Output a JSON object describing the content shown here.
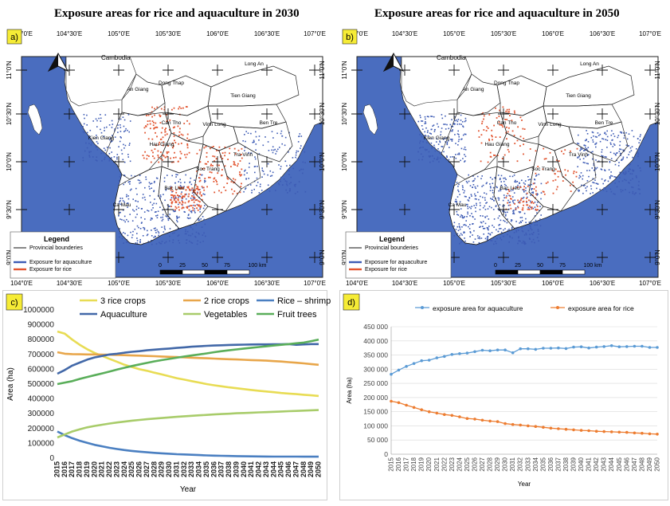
{
  "panel_a": {
    "title": "Exposure areas for rice and aquaculture in 2030",
    "panel_label": "a)",
    "lon_ticks": [
      "104°0'E",
      "104°30'E",
      "105°0'E",
      "105°30'E",
      "106°0'E",
      "106°30'E",
      "107°0'E"
    ],
    "lat_ticks": [
      "11°0'N",
      "10°30'N",
      "10°0'N",
      "9°30'N",
      "9°0'N"
    ],
    "country_label": "Cambodia",
    "provinces": [
      "Long An",
      "An Giang",
      "Dong Thap",
      "Tien Giang",
      "Can Tho",
      "Vinh Long",
      "Ben Tre",
      "Kien Giang",
      "Hau Giang",
      "Tra Vinh",
      "Soc Trang",
      "Bac Lieu",
      "Ca Mau"
    ],
    "legend": {
      "title": "Legend",
      "items": [
        "Provincial bounderies",
        "Exposure for aquaculture",
        "Exposure for rice"
      ]
    },
    "scale": {
      "ticks": [
        "0",
        "25",
        "50",
        "75",
        "100 km"
      ]
    }
  },
  "panel_b": {
    "title": "Exposure areas for rice and aquaculture in 2050",
    "panel_label": "b)",
    "lon_ticks": [
      "104°0'E",
      "104°30'E",
      "105°0'E",
      "105°30'E",
      "106°0'E",
      "106°30'E",
      "107°0'E"
    ],
    "lat_ticks": [
      "11°0'N",
      "10°30'N",
      "10°0'N",
      "9°30'N",
      "9°0'N"
    ],
    "country_label": "Cambodia",
    "provinces": [
      "Long An",
      "An Giang",
      "Dong Thap",
      "Tien Giang",
      "Can Tho",
      "Vinh Long",
      "Ben Tre",
      "Kien Giang",
      "Hau Giang",
      "Tra Vinh",
      "Soc Trang",
      "Bac Lieu",
      "Ca Mau"
    ],
    "legend": {
      "title": "Legend",
      "items": [
        "Provincial bounderies",
        "Exposure for aquaculture",
        "Exposure for rice"
      ]
    },
    "scale": {
      "ticks": [
        "0",
        "25",
        "50",
        "75",
        "100 km"
      ]
    }
  },
  "colors": {
    "sea": "#4a6dbf",
    "aquaculture": "#3d5bb5",
    "rice": "#e2542f",
    "land": "#ffffff",
    "cambodia": "#ffffff"
  },
  "chart_data": [
    {
      "type": "line",
      "panel_label": "c)",
      "title": "",
      "xlabel": "Year",
      "ylabel": "Area (ha)",
      "ylim": [
        0,
        1000000
      ],
      "yticks": [
        0,
        100000,
        200000,
        300000,
        400000,
        500000,
        600000,
        700000,
        800000,
        900000,
        1000000
      ],
      "x": [
        2015,
        2016,
        2017,
        2018,
        2019,
        2020,
        2021,
        2022,
        2023,
        2024,
        2025,
        2026,
        2027,
        2028,
        2029,
        2030,
        2031,
        2032,
        2033,
        2034,
        2035,
        2036,
        2037,
        2038,
        2039,
        2040,
        2041,
        2042,
        2043,
        2044,
        2045,
        2046,
        2047,
        2048,
        2049,
        2050
      ],
      "series": [
        {
          "name": "3 rice crops",
          "color": "#e8dc54",
          "values": [
            855000,
            840000,
            800000,
            765000,
            735000,
            710000,
            690000,
            670000,
            650000,
            630000,
            615000,
            600000,
            590000,
            577000,
            565000,
            552000,
            540000,
            530000,
            520000,
            510000,
            500000,
            492000,
            485000,
            478000,
            472000,
            466000,
            460000,
            455000,
            450000,
            445000,
            440000,
            436000,
            432000,
            428000,
            424000,
            420000
          ]
        },
        {
          "name": "2 rice crops",
          "color": "#e8a64a",
          "values": [
            715000,
            705000,
            702000,
            701000,
            700000,
            700000,
            699000,
            698000,
            697000,
            695000,
            693000,
            692000,
            690000,
            688000,
            686000,
            684000,
            682000,
            680000,
            678000,
            676000,
            674000,
            672000,
            670000,
            668000,
            666000,
            664000,
            662000,
            660000,
            658000,
            655000,
            652000,
            648000,
            644000,
            640000,
            635000,
            630000
          ]
        },
        {
          "name": "Rice – shrimp",
          "color": "#4a7fc1",
          "values": [
            180000,
            155000,
            135000,
            118000,
            103000,
            90000,
            80000,
            70000,
            62000,
            55000,
            49000,
            44000,
            40000,
            36000,
            33000,
            30000,
            27000,
            25000,
            23000,
            21000,
            19000,
            17000,
            16000,
            15000,
            14000,
            13000,
            12500,
            12000,
            11500,
            11000,
            11000,
            10500,
            10500,
            10000,
            10000,
            10000
          ]
        },
        {
          "name": "Aquaculture",
          "color": "#4268a8",
          "values": [
            570000,
            595000,
            625000,
            645000,
            665000,
            680000,
            690000,
            700000,
            705000,
            712000,
            718000,
            722000,
            728000,
            732000,
            736000,
            740000,
            744000,
            748000,
            752000,
            755000,
            758000,
            760000,
            762000,
            764000,
            765000,
            766000,
            767000,
            768000,
            768000,
            769000,
            769000,
            770000,
            765000,
            768000,
            770000,
            770000
          ]
        },
        {
          "name": "Vegetables",
          "color": "#a8cc6a",
          "values": [
            140000,
            160000,
            180000,
            195000,
            208000,
            218000,
            226000,
            234000,
            241000,
            247000,
            253000,
            258000,
            263000,
            267000,
            271000,
            275000,
            279000,
            283000,
            286000,
            289000,
            292000,
            295000,
            298000,
            300000,
            303000,
            305000,
            307000,
            309000,
            311000,
            313000,
            315000,
            317000,
            319000,
            321000,
            323000,
            325000
          ]
        },
        {
          "name": "Fruit trees",
          "color": "#5aae5a",
          "values": [
            500000,
            510000,
            520000,
            535000,
            548000,
            560000,
            572000,
            585000,
            598000,
            610000,
            622000,
            633000,
            643000,
            653000,
            662000,
            670000,
            678000,
            686000,
            693000,
            700000,
            707000,
            715000,
            722000,
            728000,
            734000,
            740000,
            745000,
            750000,
            755000,
            760000,
            765000,
            770000,
            775000,
            780000,
            790000,
            800000
          ]
        }
      ]
    },
    {
      "type": "line",
      "panel_label": "d)",
      "title": "",
      "xlabel": "Year",
      "ylabel": "Area (ha)",
      "ylim": [
        0,
        450000
      ],
      "yticks": [
        0,
        50000,
        100000,
        150000,
        200000,
        250000,
        300000,
        350000,
        400000,
        450000
      ],
      "x": [
        2015,
        2016,
        2017,
        2018,
        2019,
        2020,
        2021,
        2022,
        2023,
        2024,
        2025,
        2026,
        2027,
        2028,
        2029,
        2030,
        2031,
        2032,
        2033,
        2034,
        2035,
        2036,
        2037,
        2038,
        2039,
        2040,
        2041,
        2042,
        2043,
        2044,
        2045,
        2046,
        2047,
        2048,
        2049,
        2050
      ],
      "series": [
        {
          "name": "exposure area for aquaculture",
          "color": "#5b9bd5",
          "values": [
            282000,
            297000,
            310000,
            320000,
            330000,
            332000,
            340000,
            345000,
            352000,
            355000,
            357000,
            362000,
            367000,
            365000,
            368000,
            368000,
            358000,
            372000,
            372000,
            370000,
            374000,
            374000,
            375000,
            373000,
            378000,
            379000,
            375000,
            378000,
            380000,
            383000,
            379000,
            380000,
            381000,
            381000,
            377000,
            377000
          ]
        },
        {
          "name": "exposure area for rice",
          "color": "#ed7d31",
          "values": [
            187000,
            182000,
            173000,
            165000,
            157000,
            150000,
            145000,
            140000,
            137000,
            132000,
            126000,
            124000,
            120000,
            117000,
            115000,
            108000,
            105000,
            103000,
            100000,
            98000,
            95000,
            92000,
            90000,
            88000,
            86000,
            84000,
            83000,
            81000,
            80000,
            79000,
            78000,
            77000,
            75000,
            74000,
            72000,
            71000
          ]
        }
      ]
    }
  ]
}
